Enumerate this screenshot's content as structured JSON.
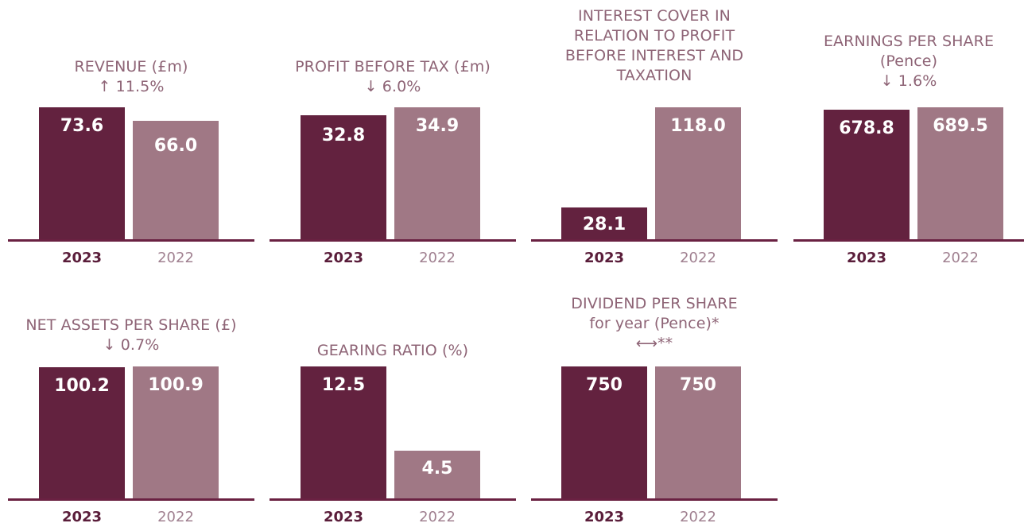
{
  "colors": {
    "current_year": "#63223f",
    "prior_year": "#a07885",
    "title": "#8e6476",
    "baseline": "#6a2142"
  },
  "chart_data": [
    {
      "type": "bar",
      "title_lines": [
        "REVENUE (£m)",
        "↑ 11.5%"
      ],
      "categories": [
        "2023",
        "2022"
      ],
      "values": [
        73.6,
        66.0
      ],
      "value_labels": [
        "73.6",
        "66.0"
      ],
      "ylim": [
        0,
        73.6
      ]
    },
    {
      "type": "bar",
      "title_lines": [
        "PROFIT BEFORE TAX (£m)",
        "↓ 6.0%"
      ],
      "categories": [
        "2023",
        "2022"
      ],
      "values": [
        32.8,
        34.9
      ],
      "value_labels": [
        "32.8",
        "34.9"
      ],
      "ylim": [
        0,
        34.9
      ]
    },
    {
      "type": "bar",
      "title_lines": [
        "INTEREST COVER IN",
        "RELATION TO PROFIT",
        "BEFORE INTEREST AND",
        "TAXATION"
      ],
      "categories": [
        "2023",
        "2022"
      ],
      "values": [
        28.1,
        118.0
      ],
      "value_labels": [
        "28.1",
        "118.0"
      ],
      "ylim": [
        0,
        118.0
      ]
    },
    {
      "type": "bar",
      "title_lines": [
        "EARNINGS PER SHARE",
        "(Pence)",
        "↓ 1.6%"
      ],
      "categories": [
        "2023",
        "2022"
      ],
      "values": [
        678.8,
        689.5
      ],
      "value_labels": [
        "678.8",
        "689.5"
      ],
      "ylim": [
        0,
        689.5
      ]
    },
    {
      "type": "bar",
      "title_lines": [
        "NET ASSETS PER SHARE (£)",
        "↓ 0.7%"
      ],
      "categories": [
        "2023",
        "2022"
      ],
      "values": [
        100.2,
        100.9
      ],
      "value_labels": [
        "100.2",
        "100.9"
      ],
      "ylim": [
        0,
        100.9
      ]
    },
    {
      "type": "bar",
      "title_lines": [
        "GEARING RATIO (%)"
      ],
      "categories": [
        "2023",
        "2022"
      ],
      "values": [
        12.5,
        4.5
      ],
      "value_labels": [
        "12.5",
        "4.5"
      ],
      "ylim": [
        0,
        12.5
      ]
    },
    {
      "type": "bar",
      "title_lines": [
        "DIVIDEND PER SHARE",
        "for year (Pence)*",
        "⟷**"
      ],
      "categories": [
        "2023",
        "2022"
      ],
      "values": [
        750,
        750
      ],
      "value_labels": [
        "750",
        "750"
      ],
      "ylim": [
        0,
        750
      ]
    }
  ]
}
